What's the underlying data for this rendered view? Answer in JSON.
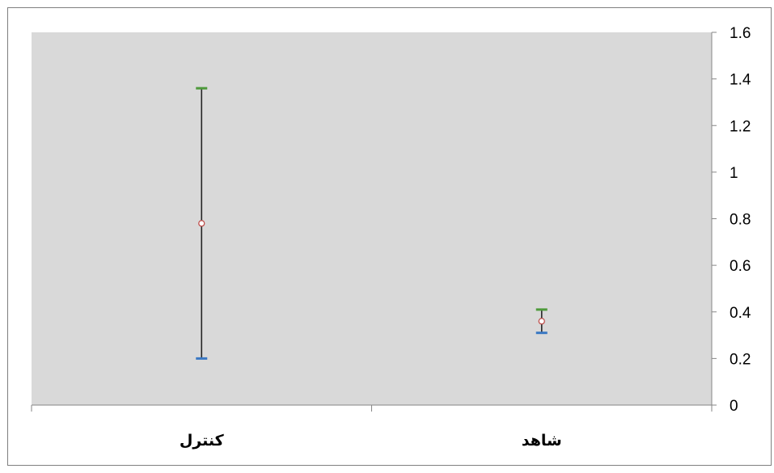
{
  "chart_data": {
    "type": "error-bar",
    "categories": [
      "کنترل",
      "شاهد"
    ],
    "series": [
      {
        "values": [
          0.78,
          0.36
        ],
        "high": [
          1.36,
          0.41
        ],
        "low": [
          0.2,
          0.31
        ]
      }
    ],
    "title": "",
    "xlabel": "",
    "ylabel": "",
    "ylim": [
      0,
      1.6
    ],
    "yticks": [
      "0",
      "0.2",
      "0.4",
      "0.6",
      "0.8",
      "1",
      "1.2",
      "1.4",
      "1.6"
    ],
    "yaxis_position": "right",
    "grid": false,
    "legend": "none",
    "colors": {
      "plot_background": "#d9d9d9",
      "outer_border": "#7f7f7f",
      "axis": "#868686",
      "range_line": "#262626",
      "high_cap": "#4e9a3b",
      "low_cap": "#3a78c3",
      "marker_stroke": "#c0504d",
      "marker_fill": "#ffffff",
      "text": "#000000"
    }
  }
}
